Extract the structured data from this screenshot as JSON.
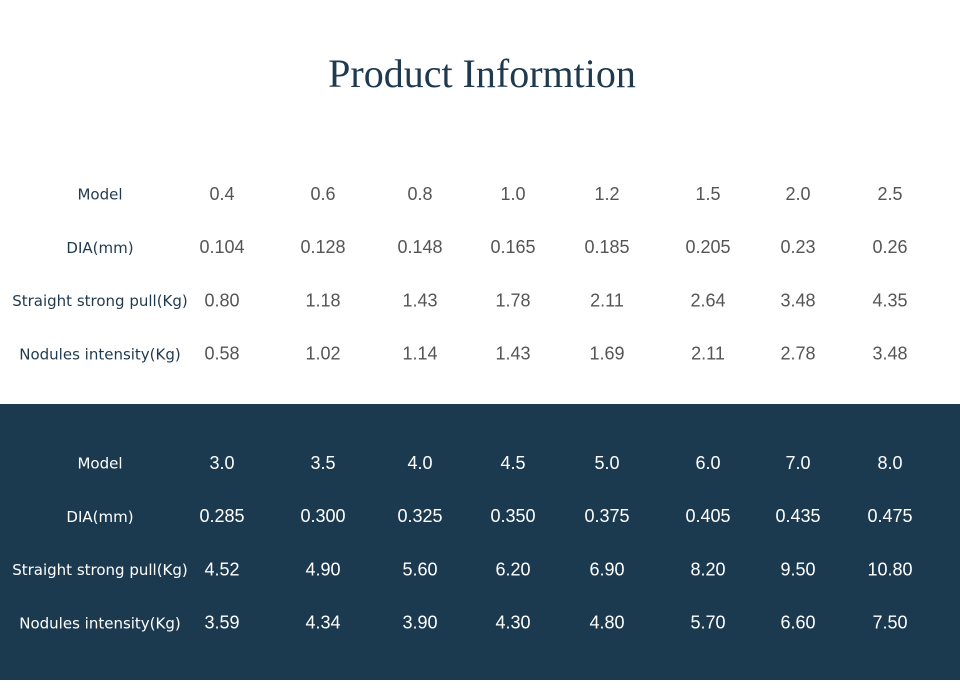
{
  "header": {
    "title": "Product Informtion"
  },
  "tables": [
    {
      "rows": [
        [
          "Model",
          "0.4",
          "0.6",
          "0.8",
          "1.0",
          "1.2",
          "1.5",
          "2.0",
          "2.5"
        ],
        [
          "DIA(mm)",
          "0.104",
          "0.128",
          "0.148",
          "0.165",
          "0.185",
          "0.205",
          "0.23",
          "0.26"
        ],
        [
          "Straight strong pull(Kg)",
          "0.80",
          "1.18",
          "1.43",
          "1.78",
          "2.11",
          "2.64",
          "3.48",
          "4.35"
        ],
        [
          "Nodules intensity(Kg)",
          "0.58",
          "1.02",
          "1.14",
          "1.43",
          "1.69",
          "2.11",
          "2.78",
          "3.48"
        ]
      ]
    },
    {
      "rows": [
        [
          "Model",
          "3.0",
          "3.5",
          "4.0",
          "4.5",
          "5.0",
          "6.0",
          "7.0",
          "8.0"
        ],
        [
          "DIA(mm)",
          "0.285",
          "0.300",
          "0.325",
          "0.350",
          "0.375",
          "0.405",
          "0.435",
          "0.475"
        ],
        [
          "Straight strong pull(Kg)",
          "4.52",
          "4.90",
          "5.60",
          "6.20",
          "6.90",
          "8.20",
          "9.50",
          "10.80"
        ],
        [
          "Nodules intensity(Kg)",
          "3.59",
          "4.34",
          "3.90",
          "4.30",
          "4.80",
          "5.70",
          "6.60",
          "7.50"
        ]
      ]
    }
  ]
}
